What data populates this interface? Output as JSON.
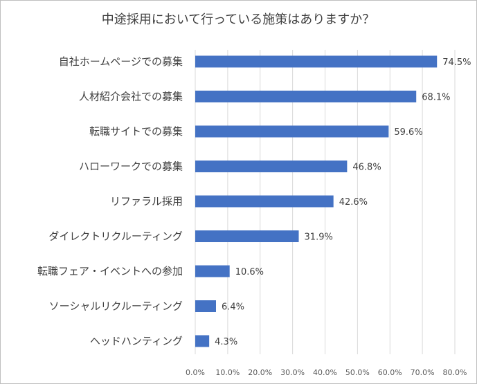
{
  "chart_data": {
    "type": "bar",
    "orientation": "horizontal",
    "title": "中途採用において行っている施策はありますか？",
    "categories": [
      "自社ホームページでの募集",
      "人材紹介会社での募集",
      "転職サイトでの募集",
      "ハローワークでの募集",
      "リファラル採用",
      "ダイレクトリクルーティング",
      "転職フェア・イベントへの参加",
      "ソーシャルリクルーティング",
      "ヘッドハンティング"
    ],
    "values": [
      74.5,
      68.1,
      59.6,
      46.8,
      42.6,
      31.9,
      10.6,
      6.4,
      4.3
    ],
    "value_labels": [
      "74.5%",
      "68.1%",
      "59.6%",
      "46.8%",
      "42.6%",
      "31.9%",
      "10.6%",
      "6.4%",
      "4.3%"
    ],
    "xlim": [
      0,
      80
    ],
    "x_ticks": [
      "0.0%",
      "10.0%",
      "20.0%",
      "30.0%",
      "40.0%",
      "50.0%",
      "60.0%",
      "70.0%",
      "80.0%"
    ],
    "grid": true,
    "bar_color": "#4472c4"
  }
}
